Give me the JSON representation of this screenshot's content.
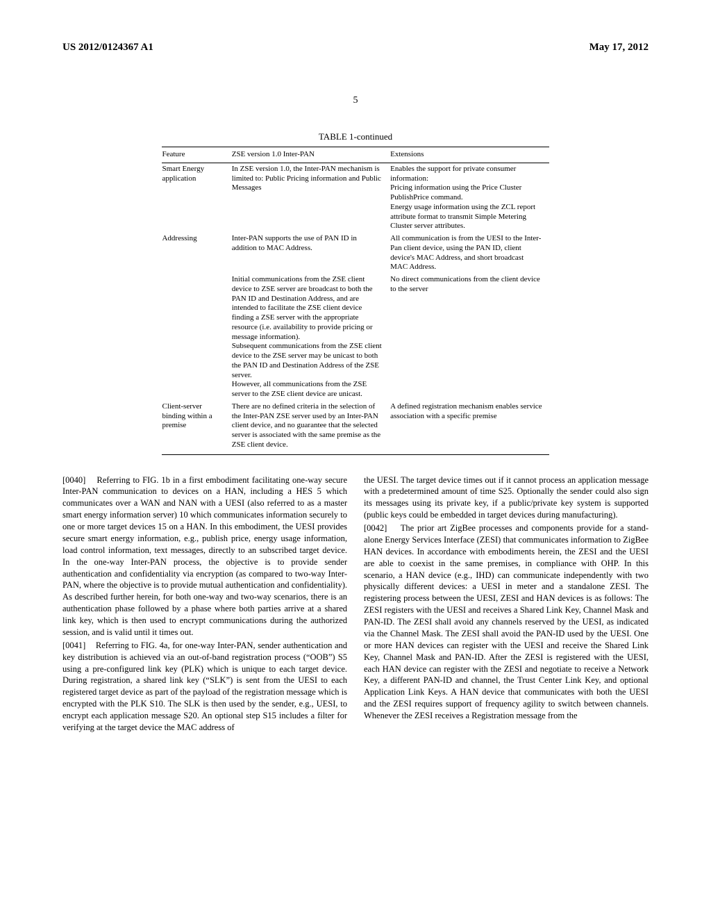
{
  "header": {
    "left": "US 2012/0124367 A1",
    "right": "May 17, 2012"
  },
  "page_number": "5",
  "table": {
    "caption": "TABLE 1-continued",
    "headers": [
      "Feature",
      "ZSE version 1.0 Inter-PAN",
      "Extensions"
    ],
    "rows": [
      {
        "feature": "Smart Energy application",
        "zse": "In ZSE version 1.0, the Inter-PAN mechanism is limited to: Public Pricing information and Public Messages",
        "ext": "Enables the support for private consumer information:\nPricing information using the Price Cluster PublishPrice command.\nEnergy usage information using the ZCL report attribute format to transmit Simple Metering Cluster server attributes."
      },
      {
        "feature": "Addressing",
        "zse": "Inter-PAN supports the use of PAN ID in addition to MAC Address.",
        "ext": "All communication is from the UESI to the Inter-Pan client device, using the PAN ID, client device's MAC Address, and short broadcast MAC Address."
      },
      {
        "feature": "",
        "zse": "Initial communications from the ZSE client device to ZSE server are broadcast to both the PAN ID and Destination Address, and are intended to facilitate the ZSE client device finding a ZSE server with the appropriate resource (i.e. availability to provide pricing or message information).\nSubsequent communications from the ZSE client device to the ZSE server may be unicast to both the PAN ID and Destination Address of the ZSE server.\nHowever, all communications from the ZSE server to the ZSE client device are unicast.",
        "ext": "No direct communications from the client device to the server"
      },
      {
        "feature": "Client-server binding within a premise",
        "zse": "There are no defined criteria in the selection of the Inter-PAN ZSE server used by an Inter-PAN client device, and no guarantee that the selected server is associated with the same premise as the ZSE client device.",
        "ext": "A defined registration mechanism enables service association with a specific premise"
      }
    ]
  },
  "paragraphs": [
    {
      "num": "[0040]",
      "text": "Referring to FIG. 1b in a first embodiment facilitating one-way secure Inter-PAN communication to devices on a HAN, including a HES 5 which communicates over a WAN and NAN with a UESI (also referred to as a master smart energy information server) 10 which communicates information securely to one or more target devices 15 on a HAN. In this embodiment, the UESI provides secure smart energy information, e.g., publish price, energy usage information, load control information, text messages, directly to an subscribed target device. In the one-way Inter-PAN process, the objective is to provide sender authentication and confidentiality via encryption (as compared to two-way Inter-PAN, where the objective is to provide mutual authentication and confidentiality). As described further herein, for both one-way and two-way scenarios, there is an authentication phase followed by a phase where both parties arrive at a shared link key, which is then used to encrypt communications during the authorized session, and is valid until it times out."
    },
    {
      "num": "[0041]",
      "text": "Referring to FIG. 4a, for one-way Inter-PAN, sender authentication and key distribution is achieved via an out-of-band registration process (“OOB”) S5 using a pre-configured link key (PLK) which is unique to each target device. During registration, a shared link key (“SLK”) is sent from the UESI to each registered target device as part of the payload of the registration message which is encrypted with the PLK S10. The SLK is then used by the sender, e.g., UESI, to encrypt each application message S20. An optional step S15 includes a filter for verifying at the target device the MAC address of"
    },
    {
      "num": "",
      "text": "the UESI. The target device times out if it cannot process an application message with a predetermined amount of time S25. Optionally the sender could also sign its messages using its private key, if a public/private key system is supported (public keys could be embedded in target devices during manufacturing)."
    },
    {
      "num": "[0042]",
      "text": "The prior art ZigBee processes and components provide for a stand-alone Energy Services Interface (ZESI) that communicates information to ZigBee HAN devices. In accordance with embodiments herein, the ZESI and the UESI are able to coexist in the same premises, in compliance with OHP. In this scenario, a HAN device (e.g., IHD) can communicate independently with two physically different devices: a UESI in meter and a standalone ZESI. The registering process between the UESI, ZESI and HAN devices is as follows: The ZESI registers with the UESI and receives a Shared Link Key, Channel Mask and PAN-ID. The ZESI shall avoid any channels reserved by the UESI, as indicated via the Channel Mask. The ZESI shall avoid the PAN-ID used by the UESI. One or more HAN devices can register with the UESI and receive the Shared Link Key, Channel Mask and PAN-ID. After the ZESI is registered with the UESI, each HAN device can register with the ZESI and negotiate to receive a Network Key, a different PAN-ID and channel, the Trust Center Link Key, and optional Application Link Keys. A HAN device that communicates with both the UESI and the ZESI requires support of frequency agility to switch between channels. Whenever the ZESI receives a Registration message from the"
    }
  ]
}
